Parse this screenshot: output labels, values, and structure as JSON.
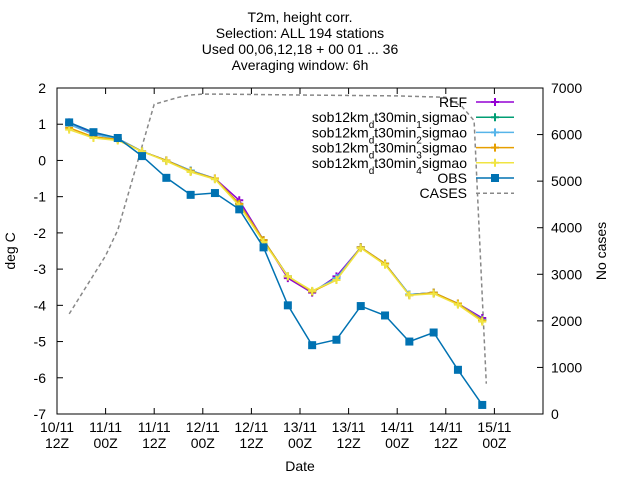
{
  "chart_data": {
    "type": "line",
    "title_lines": [
      "T2m, height corr.",
      "Selection: ALL     194 stations",
      "Used 00,06,12,18 + 00 01 ... 36",
      "Averaging window:  6h"
    ],
    "xlabel": "Date",
    "ylabel": "deg C",
    "y2label": "No cases",
    "xlim": [
      0,
      120
    ],
    "ylim": [
      -7,
      2
    ],
    "y2lim": [
      0,
      7000
    ],
    "x_ticks": [
      {
        "x": 0,
        "line1": "10/11",
        "line2": "12Z"
      },
      {
        "x": 12,
        "line1": "11/11",
        "line2": "00Z"
      },
      {
        "x": 24,
        "line1": "11/11",
        "line2": "12Z"
      },
      {
        "x": 36,
        "line1": "12/11",
        "line2": "00Z"
      },
      {
        "x": 48,
        "line1": "12/11",
        "line2": "12Z"
      },
      {
        "x": 60,
        "line1": "13/11",
        "line2": "00Z"
      },
      {
        "x": 72,
        "line1": "13/11",
        "line2": "12Z"
      },
      {
        "x": 84,
        "line1": "14/11",
        "line2": "00Z"
      },
      {
        "x": 96,
        "line1": "14/11",
        "line2": "12Z"
      },
      {
        "x": 108,
        "line1": "15/11",
        "line2": "00Z"
      }
    ],
    "y_ticks": [
      "2",
      "1",
      "0",
      "-1",
      "-2",
      "-3",
      "-4",
      "-5",
      "-6",
      "-7"
    ],
    "y2_ticks": [
      "7000",
      "6000",
      "5000",
      "4000",
      "3000",
      "2000",
      "1000",
      "0"
    ],
    "x": [
      3,
      9,
      15,
      21,
      27,
      33,
      39,
      45,
      51,
      57,
      63,
      69,
      75,
      81,
      87,
      93,
      99,
      105
    ],
    "series": [
      {
        "name": "REF",
        "legend_parts": [
          [
            "REF",
            false
          ]
        ],
        "color": "#9400d3",
        "marker": "plus",
        "values": [
          1.05,
          0.75,
          0.6,
          0.25,
          0.0,
          -0.28,
          -0.5,
          -1.1,
          -2.2,
          -3.25,
          -3.65,
          -3.2,
          -2.4,
          -2.85,
          -3.7,
          -3.65,
          -3.95,
          -4.35
        ]
      },
      {
        "name": "sob12km_dt30min_1sigmao",
        "legend_parts": [
          [
            "sob12km",
            false
          ],
          [
            "d",
            true
          ],
          [
            "t30min",
            false
          ],
          [
            "1",
            true
          ],
          [
            "sigmao",
            false
          ]
        ],
        "color": "#009e73",
        "marker": "plus",
        "values": [
          1.0,
          0.72,
          0.6,
          0.25,
          0.0,
          -0.28,
          -0.5,
          -1.2,
          -2.2,
          -3.2,
          -3.62,
          -3.25,
          -2.4,
          -2.85,
          -3.7,
          -3.65,
          -3.95,
          -4.4
        ]
      },
      {
        "name": "sob12km_dt30min_2sigmao",
        "legend_parts": [
          [
            "sob12km",
            false
          ],
          [
            "d",
            true
          ],
          [
            "t30min",
            false
          ],
          [
            "2",
            true
          ],
          [
            "sigmao",
            false
          ]
        ],
        "color": "#56b4e9",
        "marker": "plus",
        "values": [
          1.0,
          0.72,
          0.6,
          0.25,
          0.0,
          -0.28,
          -0.5,
          -1.2,
          -2.2,
          -3.2,
          -3.62,
          -3.25,
          -2.4,
          -2.85,
          -3.7,
          -3.65,
          -3.95,
          -4.4
        ]
      },
      {
        "name": "sob12km_dt30min_3sigmao",
        "legend_parts": [
          [
            "sob12km",
            false
          ],
          [
            "d",
            true
          ],
          [
            "t30min",
            false
          ],
          [
            "3",
            true
          ],
          [
            "sigmao",
            false
          ]
        ],
        "color": "#e69f00",
        "marker": "plus",
        "values": [
          0.9,
          0.65,
          0.58,
          0.25,
          0.0,
          -0.3,
          -0.5,
          -1.2,
          -2.2,
          -3.2,
          -3.62,
          -3.3,
          -2.4,
          -2.85,
          -3.72,
          -3.65,
          -3.95,
          -4.42
        ]
      },
      {
        "name": "sob12km_dt30min_4sigmao",
        "legend_parts": [
          [
            "sob12km",
            false
          ],
          [
            "d",
            true
          ],
          [
            "t30min",
            false
          ],
          [
            "4",
            true
          ],
          [
            "sigmao",
            false
          ]
        ],
        "color": "#f0e442",
        "marker": "plus",
        "values": [
          0.85,
          0.62,
          0.55,
          0.25,
          -0.02,
          -0.32,
          -0.52,
          -1.25,
          -2.25,
          -3.2,
          -3.6,
          -3.3,
          -2.42,
          -2.88,
          -3.72,
          -3.68,
          -3.98,
          -4.45
        ]
      },
      {
        "name": "OBS",
        "legend_parts": [
          [
            "OBS",
            false
          ]
        ],
        "color": "#0072b2",
        "marker": "square",
        "values": [
          1.05,
          0.78,
          0.62,
          0.12,
          -0.48,
          -0.95,
          -0.9,
          -1.35,
          -2.4,
          -4.0,
          -5.1,
          -4.95,
          -4.02,
          -4.28,
          -5.0,
          -4.75,
          -5.78,
          -6.75
        ]
      }
    ],
    "cases": {
      "name": "CASES",
      "legend_parts": [
        [
          "CASES",
          false
        ]
      ],
      "color": "#888888",
      "x": [
        3,
        12,
        15,
        24,
        30,
        33,
        36,
        40,
        60,
        84,
        96,
        100,
        103,
        105,
        106
      ],
      "values": [
        2150,
        3400,
        3950,
        6650,
        6800,
        6850,
        6870,
        6870,
        6850,
        6830,
        6800,
        6600,
        6300,
        2500,
        650
      ]
    }
  }
}
